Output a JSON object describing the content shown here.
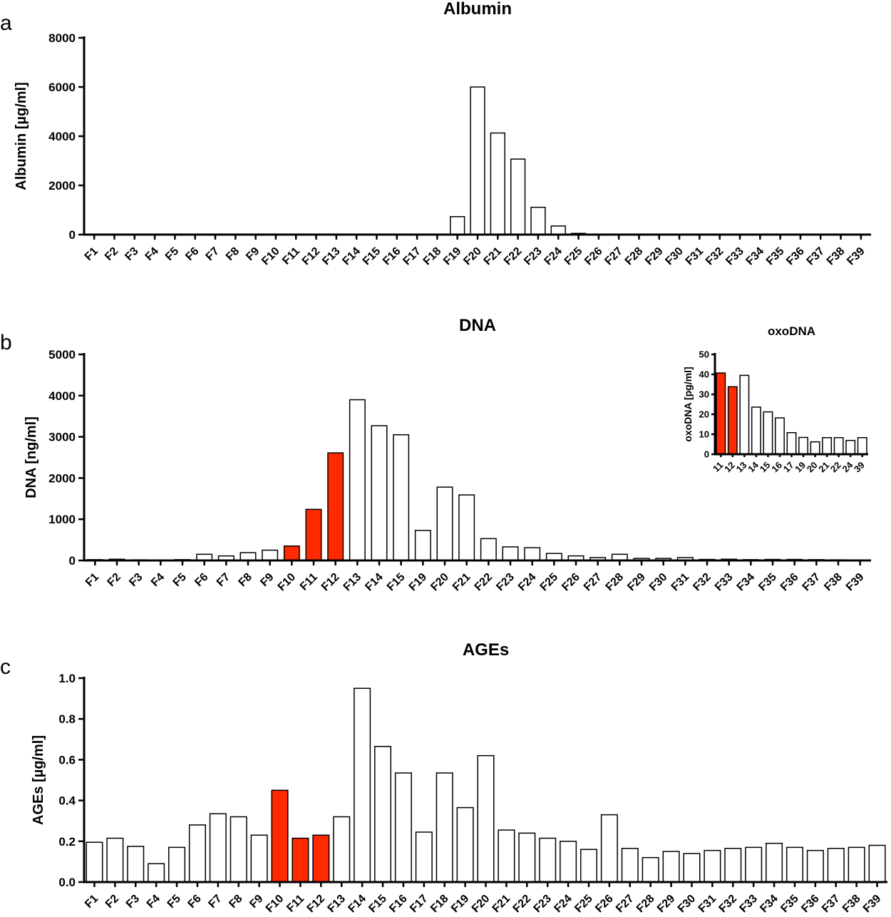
{
  "panels": {
    "a": "a",
    "b": "b",
    "c": "c"
  },
  "chart_data": [
    {
      "id": "albumin",
      "type": "bar",
      "title": "Albumin",
      "xlabel": "",
      "ylabel": "Albumin [µg/ml]",
      "ylim": [
        0,
        8000
      ],
      "yticks": [
        "0",
        "2000",
        "4000",
        "6000",
        "8000"
      ],
      "categories": [
        "F1",
        "F2",
        "F3",
        "F4",
        "F5",
        "F6",
        "F7",
        "F8",
        "F9",
        "F10",
        "F11",
        "F12",
        "F13",
        "F14",
        "F15",
        "F16",
        "F17",
        "F18",
        "F19",
        "F20",
        "F21",
        "F22",
        "F23",
        "F24",
        "F25",
        "F26",
        "F27",
        "F28",
        "F29",
        "F30",
        "F31",
        "F32",
        "F33",
        "F34",
        "F35",
        "F36",
        "F37",
        "F38",
        "F39"
      ],
      "values": [
        0,
        0,
        0,
        0,
        0,
        0,
        0,
        0,
        0,
        0,
        0,
        0,
        0,
        0,
        0,
        0,
        0,
        0,
        730,
        6000,
        4130,
        3070,
        1110,
        350,
        50,
        15,
        5,
        0,
        0,
        0,
        0,
        0,
        0,
        0,
        0,
        0,
        0,
        0,
        0
      ],
      "highlight": [],
      "colors": {
        "fill": "#ffffff",
        "highlight": "#ff2a00"
      },
      "grid": false,
      "legend": "none"
    },
    {
      "id": "dna",
      "type": "bar",
      "title": "DNA",
      "xlabel": "",
      "ylabel": "DNA [ng/ml]",
      "ylim": [
        0,
        5000
      ],
      "yticks": [
        "0",
        "1000",
        "2000",
        "3000",
        "4000",
        "5000"
      ],
      "categories": [
        "F1",
        "F2",
        "F3",
        "F4",
        "F5",
        "F6",
        "F7",
        "F8",
        "F9",
        "F10",
        "F11",
        "F12",
        "F13",
        "F14",
        "F15",
        "F19",
        "F20",
        "F21",
        "F22",
        "F23",
        "F24",
        "F25",
        "F26",
        "F27",
        "F28",
        "F29",
        "F30",
        "F31",
        "F32",
        "F33",
        "F34",
        "F35",
        "F36",
        "F37",
        "F38",
        "F39"
      ],
      "values": [
        20,
        30,
        15,
        10,
        20,
        150,
        110,
        190,
        250,
        350,
        1240,
        2610,
        3900,
        3270,
        3050,
        730,
        1780,
        1590,
        530,
        330,
        310,
        170,
        110,
        70,
        150,
        50,
        50,
        70,
        25,
        30,
        20,
        25,
        25,
        20,
        15,
        10
      ],
      "highlight": [
        "F10",
        "F11",
        "F12"
      ],
      "colors": {
        "fill": "#ffffff",
        "highlight": "#ff2a00"
      },
      "grid": false,
      "legend": "none",
      "inset": {
        "type": "bar",
        "title": "oxoDNA",
        "ylabel": "oxoDNA [pg/ml]",
        "ylim": [
          0,
          50
        ],
        "yticks": [
          "0",
          "10",
          "20",
          "30",
          "40",
          "50"
        ],
        "categories": [
          "11",
          "12",
          "13",
          "14",
          "15",
          "16",
          "17",
          "19",
          "20",
          "21",
          "22",
          "24",
          "39"
        ],
        "values": [
          40.7,
          33.8,
          39.5,
          23.6,
          21.2,
          18.2,
          10.8,
          8.4,
          6.2,
          8.3,
          8.3,
          6.9,
          8.3
        ],
        "highlight": [
          "11",
          "12"
        ]
      }
    },
    {
      "id": "ages",
      "type": "bar",
      "title": "AGEs",
      "xlabel": "",
      "ylabel": "AGEs [µg/ml]",
      "ylim": [
        0,
        1.0
      ],
      "yticks": [
        "0.0",
        "0.2",
        "0.4",
        "0.6",
        "0.8",
        "1.0"
      ],
      "categories": [
        "F1",
        "F2",
        "F3",
        "F4",
        "F5",
        "F6",
        "F7",
        "F8",
        "F9",
        "F10",
        "F11",
        "F12",
        "F13",
        "F14",
        "F15",
        "F16",
        "F17",
        "F18",
        "F19",
        "F20",
        "F21",
        "F22",
        "F23",
        "F24",
        "F25",
        "F26",
        "F27",
        "F28",
        "F29",
        "F30",
        "F31",
        "F32",
        "F33",
        "F34",
        "F35",
        "F36",
        "F37",
        "F38",
        "F39"
      ],
      "values": [
        0.195,
        0.215,
        0.175,
        0.09,
        0.17,
        0.28,
        0.335,
        0.32,
        0.23,
        0.45,
        0.215,
        0.23,
        0.32,
        0.95,
        0.665,
        0.535,
        0.245,
        0.535,
        0.365,
        0.62,
        0.255,
        0.24,
        0.215,
        0.2,
        0.16,
        0.33,
        0.165,
        0.12,
        0.15,
        0.14,
        0.155,
        0.165,
        0.17,
        0.19,
        0.17,
        0.155,
        0.165,
        0.17,
        0.18
      ],
      "highlight": [
        "F10",
        "F11",
        "F12"
      ],
      "colors": {
        "fill": "#ffffff",
        "highlight": "#ff2a00"
      },
      "grid": false,
      "legend": "none"
    }
  ]
}
